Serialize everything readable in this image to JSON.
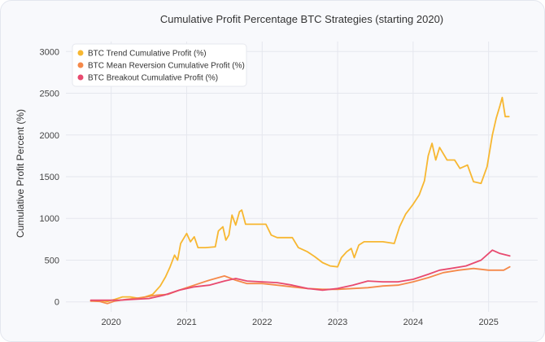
{
  "chart_data": {
    "type": "line",
    "title": "Cumulative Profit Percentage BTC Strategies (starting 2020)",
    "xlabel": "",
    "ylabel": "Cumulative Profit Percent (%)",
    "xlim": [
      2019.4,
      2025.65
    ],
    "ylim": [
      -120,
      3120
    ],
    "x_ticks": [
      2020,
      2021,
      2022,
      2023,
      2024,
      2025
    ],
    "x_tick_labels": [
      "2020",
      "2021",
      "2022",
      "2023",
      "2024",
      "2025"
    ],
    "y_ticks": [
      0,
      500,
      1000,
      1500,
      2000,
      2500,
      3000
    ],
    "y_tick_labels": [
      "0",
      "500",
      "1000",
      "1500",
      "2000",
      "2500",
      "3000"
    ],
    "grid": true,
    "legend_position": "top-left",
    "series": [
      {
        "name": "BTC Trend Cumulative Profit (%)",
        "color": "#f7b731",
        "points": [
          [
            2019.73,
            10
          ],
          [
            2019.85,
            15
          ],
          [
            2019.95,
            5
          ],
          [
            2020.05,
            30
          ],
          [
            2020.15,
            60
          ],
          [
            2020.25,
            60
          ],
          [
            2020.35,
            45
          ],
          [
            2020.45,
            60
          ],
          [
            2020.55,
            90
          ],
          [
            2020.65,
            190
          ],
          [
            2020.72,
            300
          ],
          [
            2020.78,
            420
          ],
          [
            2020.84,
            560
          ],
          [
            2020.88,
            500
          ],
          [
            2020.92,
            700
          ],
          [
            2020.96,
            760
          ],
          [
            2021.0,
            820
          ],
          [
            2021.05,
            720
          ],
          [
            2021.1,
            780
          ],
          [
            2021.15,
            650
          ],
          [
            2021.25,
            650
          ],
          [
            2021.38,
            660
          ],
          [
            2021.42,
            850
          ],
          [
            2021.48,
            900
          ],
          [
            2021.52,
            740
          ],
          [
            2021.56,
            800
          ],
          [
            2021.6,
            1040
          ],
          [
            2021.65,
            920
          ],
          [
            2021.7,
            1080
          ],
          [
            2021.73,
            1100
          ],
          [
            2021.78,
            930
          ],
          [
            2021.9,
            930
          ],
          [
            2022.05,
            930
          ],
          [
            2022.12,
            800
          ],
          [
            2022.2,
            770
          ],
          [
            2022.4,
            770
          ],
          [
            2022.48,
            650
          ],
          [
            2022.6,
            600
          ],
          [
            2022.7,
            540
          ],
          [
            2022.8,
            470
          ],
          [
            2022.9,
            430
          ],
          [
            2023.0,
            420
          ],
          [
            2023.05,
            530
          ],
          [
            2023.12,
            600
          ],
          [
            2023.18,
            640
          ],
          [
            2023.22,
            530
          ],
          [
            2023.28,
            680
          ],
          [
            2023.35,
            720
          ],
          [
            2023.5,
            720
          ],
          [
            2023.6,
            720
          ],
          [
            2023.75,
            700
          ],
          [
            2023.82,
            900
          ],
          [
            2023.9,
            1050
          ],
          [
            2024.0,
            1170
          ],
          [
            2024.08,
            1280
          ],
          [
            2024.15,
            1450
          ],
          [
            2024.2,
            1750
          ],
          [
            2024.25,
            1900
          ],
          [
            2024.3,
            1700
          ],
          [
            2024.35,
            1850
          ],
          [
            2024.45,
            1700
          ],
          [
            2024.55,
            1700
          ],
          [
            2024.62,
            1600
          ],
          [
            2024.72,
            1640
          ],
          [
            2024.8,
            1440
          ],
          [
            2024.9,
            1420
          ],
          [
            2024.98,
            1620
          ],
          [
            2025.05,
            2000
          ],
          [
            2025.1,
            2200
          ],
          [
            2025.15,
            2350
          ],
          [
            2025.18,
            2450
          ],
          [
            2025.22,
            2220
          ],
          [
            2025.27,
            2220
          ]
        ]
      },
      {
        "name": "BTC Mean Reversion Cumulative Profit (%)",
        "color": "#f5894a",
        "points": [
          [
            2019.73,
            10
          ],
          [
            2019.85,
            5
          ],
          [
            2019.95,
            -20
          ],
          [
            2020.05,
            10
          ],
          [
            2020.2,
            30
          ],
          [
            2020.4,
            50
          ],
          [
            2020.6,
            80
          ],
          [
            2020.75,
            90
          ],
          [
            2020.9,
            140
          ],
          [
            2021.1,
            200
          ],
          [
            2021.3,
            260
          ],
          [
            2021.5,
            310
          ],
          [
            2021.65,
            260
          ],
          [
            2021.8,
            220
          ],
          [
            2022.0,
            220
          ],
          [
            2022.2,
            200
          ],
          [
            2022.4,
            180
          ],
          [
            2022.6,
            160
          ],
          [
            2022.8,
            150
          ],
          [
            2023.0,
            150
          ],
          [
            2023.2,
            160
          ],
          [
            2023.4,
            170
          ],
          [
            2023.6,
            190
          ],
          [
            2023.8,
            200
          ],
          [
            2024.0,
            240
          ],
          [
            2024.2,
            290
          ],
          [
            2024.4,
            350
          ],
          [
            2024.6,
            380
          ],
          [
            2024.8,
            400
          ],
          [
            2025.0,
            380
          ],
          [
            2025.2,
            380
          ],
          [
            2025.28,
            420
          ]
        ]
      },
      {
        "name": "BTC Breakout Cumulative Profit (%)",
        "color": "#e84a6f",
        "points": [
          [
            2019.73,
            20
          ],
          [
            2019.9,
            20
          ],
          [
            2020.1,
            20
          ],
          [
            2020.3,
            30
          ],
          [
            2020.5,
            40
          ],
          [
            2020.7,
            80
          ],
          [
            2020.9,
            140
          ],
          [
            2021.1,
            180
          ],
          [
            2021.3,
            200
          ],
          [
            2021.5,
            250
          ],
          [
            2021.65,
            280
          ],
          [
            2021.8,
            250
          ],
          [
            2022.0,
            240
          ],
          [
            2022.2,
            230
          ],
          [
            2022.4,
            200
          ],
          [
            2022.6,
            160
          ],
          [
            2022.8,
            140
          ],
          [
            2023.0,
            160
          ],
          [
            2023.2,
            200
          ],
          [
            2023.4,
            250
          ],
          [
            2023.6,
            240
          ],
          [
            2023.8,
            240
          ],
          [
            2024.0,
            270
          ],
          [
            2024.2,
            330
          ],
          [
            2024.35,
            380
          ],
          [
            2024.5,
            400
          ],
          [
            2024.7,
            430
          ],
          [
            2024.9,
            500
          ],
          [
            2025.05,
            620
          ],
          [
            2025.15,
            580
          ],
          [
            2025.28,
            550
          ]
        ]
      }
    ]
  }
}
